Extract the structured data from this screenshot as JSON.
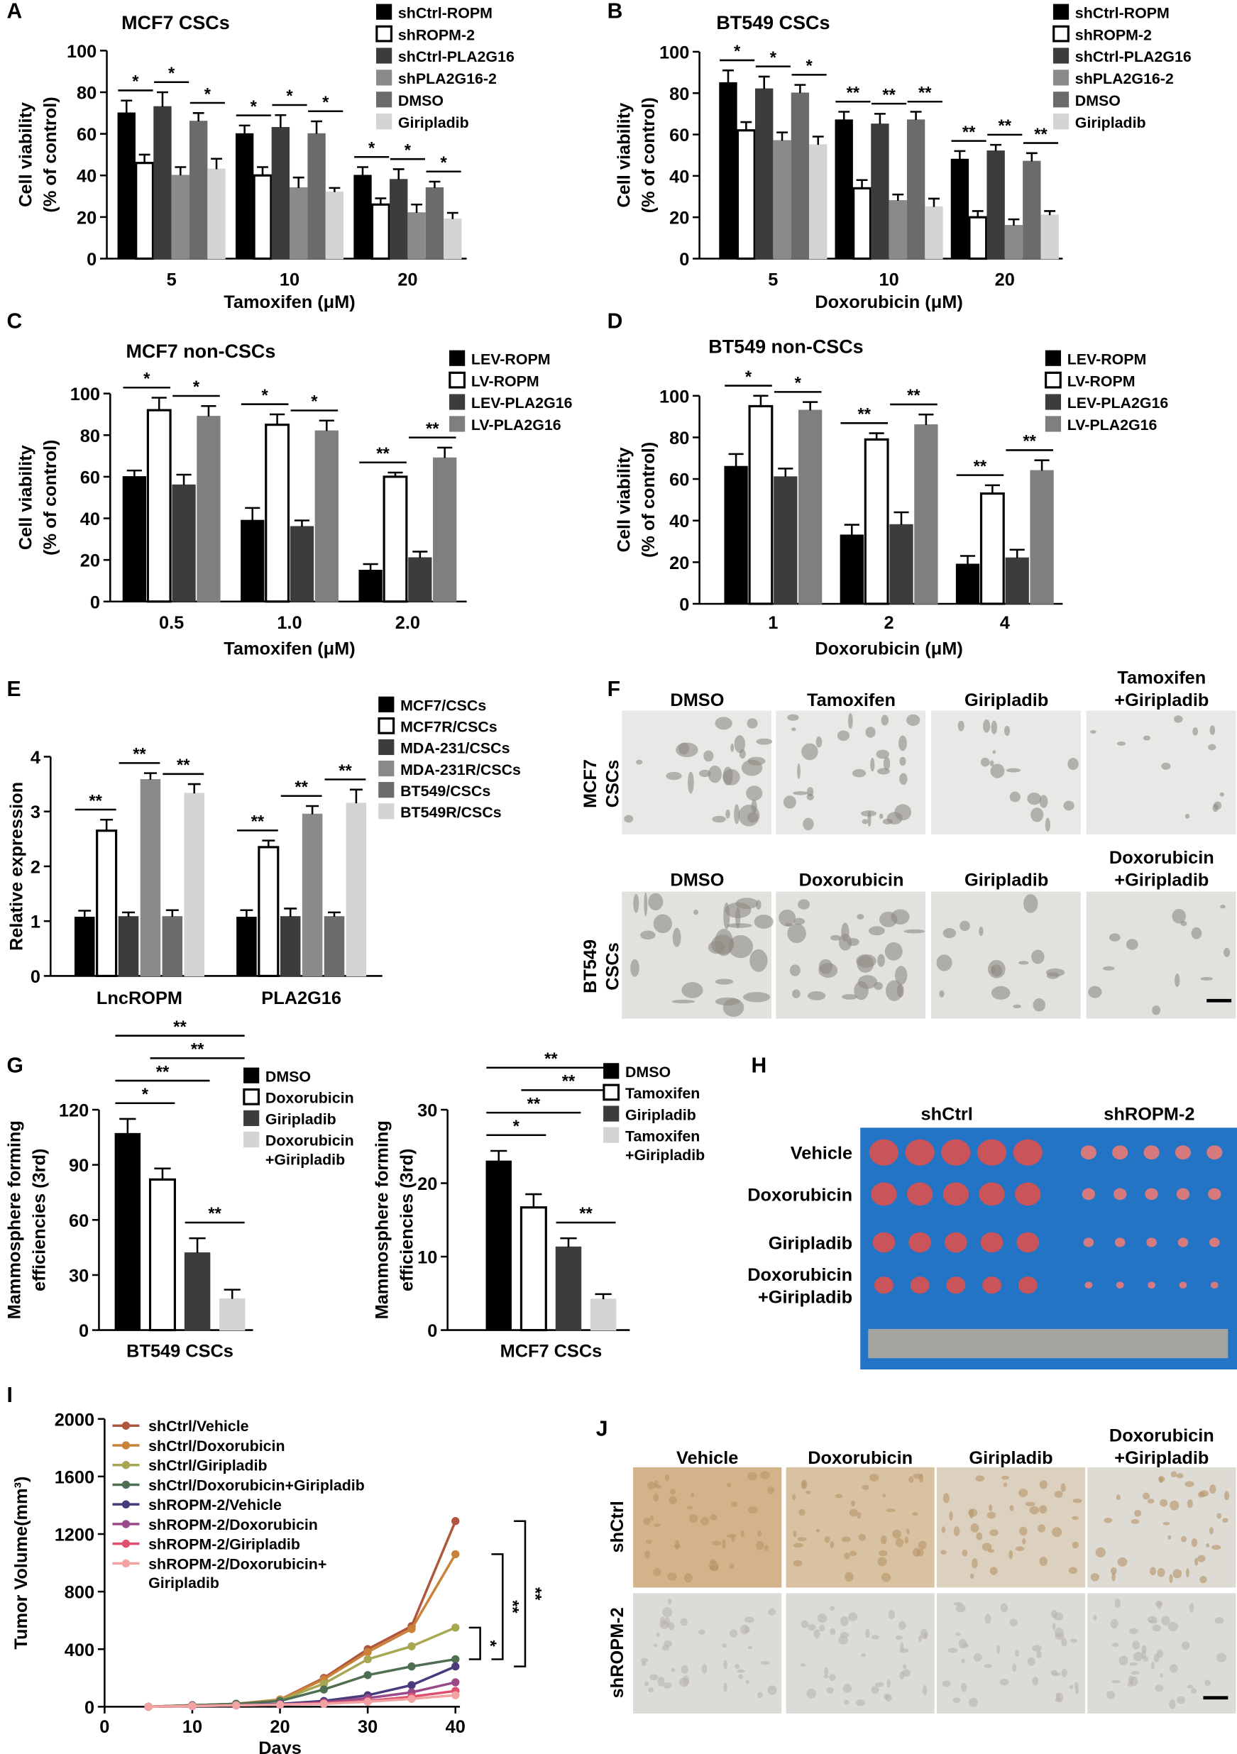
{
  "panel_labels": [
    "A",
    "B",
    "C",
    "D",
    "E",
    "F",
    "G",
    "H",
    "I",
    "J"
  ],
  "chart_data": [
    {
      "type": "bar",
      "title": "MCF7 CSCs",
      "x_label": "Tamoxifen (μM)",
      "y_label": [
        "Cell viability",
        "(% of control)"
      ],
      "categories": [
        "5",
        "10",
        "20"
      ],
      "ylim": [
        0,
        100
      ],
      "yticks": [
        0,
        20,
        40,
        60,
        80,
        100
      ],
      "series": [
        {
          "name": "shCtrl-ROPM",
          "color": "#000000",
          "values": [
            70,
            60,
            40
          ],
          "errors": [
            6,
            4,
            4
          ]
        },
        {
          "name": "shROPM-2",
          "color": "#ffffff",
          "values": [
            46,
            40,
            26
          ],
          "errors": [
            4,
            4,
            3
          ]
        },
        {
          "name": "shCtrl-PLA2G16",
          "color": "#3c3c3c",
          "values": [
            73,
            63,
            38
          ],
          "errors": [
            7,
            6,
            5
          ]
        },
        {
          "name": "shPLA2G16-2",
          "color": "#8a8a8a",
          "values": [
            40,
            34,
            22
          ],
          "errors": [
            4,
            5,
            4
          ]
        },
        {
          "name": "DMSO",
          "color": "#6b6b6b",
          "values": [
            66,
            60,
            34
          ],
          "errors": [
            4,
            6,
            3
          ]
        },
        {
          "name": "Giripladib",
          "color": "#d4d4d4",
          "values": [
            43,
            32,
            19
          ],
          "errors": [
            5,
            2,
            3
          ]
        }
      ],
      "significance": [
        [
          "*",
          "*",
          "*"
        ],
        [
          "*",
          "*",
          "*"
        ],
        [
          "*",
          "*",
          "*"
        ]
      ]
    },
    {
      "type": "bar",
      "title": "BT549 CSCs",
      "x_label": "Doxorubicin (μM)",
      "y_label": [
        "Cell viability",
        "(% of control)"
      ],
      "categories": [
        "5",
        "10",
        "20"
      ],
      "ylim": [
        0,
        100
      ],
      "yticks": [
        0,
        20,
        40,
        60,
        80,
        100
      ],
      "series": [
        {
          "name": "shCtrl-ROPM",
          "color": "#000000",
          "values": [
            85,
            67,
            48
          ],
          "errors": [
            6,
            4,
            4
          ]
        },
        {
          "name": "shROPM-2",
          "color": "#ffffff",
          "values": [
            62,
            34,
            20
          ],
          "errors": [
            4,
            4,
            3
          ]
        },
        {
          "name": "shCtrl-PLA2G16",
          "color": "#3c3c3c",
          "values": [
            82,
            65,
            52
          ],
          "errors": [
            6,
            5,
            3
          ]
        },
        {
          "name": "shPLA2G16-2",
          "color": "#8a8a8a",
          "values": [
            57,
            28,
            16
          ],
          "errors": [
            4,
            3,
            3
          ]
        },
        {
          "name": "DMSO",
          "color": "#6b6b6b",
          "values": [
            80,
            67,
            47
          ],
          "errors": [
            4,
            4,
            4
          ]
        },
        {
          "name": "Giripladib",
          "color": "#d4d4d4",
          "values": [
            55,
            25,
            21
          ],
          "errors": [
            4,
            4,
            2
          ]
        }
      ],
      "significance": [
        [
          "*",
          "*",
          "*"
        ],
        [
          "**",
          "**",
          "**"
        ],
        [
          "**",
          "**",
          "**"
        ]
      ]
    },
    {
      "type": "bar",
      "title": "MCF7 non-CSCs",
      "x_label": "Tamoxifen (μM)",
      "y_label": [
        "Cell viability",
        "(% of control)"
      ],
      "categories": [
        "0.5",
        "1.0",
        "2.0"
      ],
      "ylim": [
        0,
        100
      ],
      "yticks": [
        0,
        20,
        40,
        60,
        80,
        100
      ],
      "series": [
        {
          "name": "LEV-ROPM",
          "color": "#000000",
          "values": [
            60,
            39,
            15
          ],
          "errors": [
            3,
            6,
            3
          ]
        },
        {
          "name": "LV-ROPM",
          "color": "#ffffff",
          "values": [
            92,
            85,
            60
          ],
          "errors": [
            6,
            5,
            2
          ]
        },
        {
          "name": "LEV-PLA2G16",
          "color": "#3c3c3c",
          "values": [
            56,
            36,
            21
          ],
          "errors": [
            5,
            3,
            3
          ]
        },
        {
          "name": "LV-PLA2G16",
          "color": "#7f7f7f",
          "values": [
            89,
            82,
            69
          ],
          "errors": [
            5,
            5,
            5
          ]
        }
      ],
      "significance": [
        [
          "*",
          "*"
        ],
        [
          "*",
          "*"
        ],
        [
          "**",
          "**"
        ]
      ]
    },
    {
      "type": "bar",
      "title": "BT549 non-CSCs",
      "x_label": "Doxorubicin (μM)",
      "y_label": [
        "Cell viability",
        "(% of control)"
      ],
      "categories": [
        "1",
        "2",
        "4"
      ],
      "ylim": [
        0,
        100
      ],
      "yticks": [
        0,
        20,
        40,
        60,
        80,
        100
      ],
      "series": [
        {
          "name": "LEV-ROPM",
          "color": "#000000",
          "values": [
            66,
            33,
            19
          ],
          "errors": [
            6,
            5,
            4
          ]
        },
        {
          "name": "LV-ROPM",
          "color": "#ffffff",
          "values": [
            95,
            79,
            53
          ],
          "errors": [
            5,
            3,
            4
          ]
        },
        {
          "name": "LEV-PLA2G16",
          "color": "#3c3c3c",
          "values": [
            61,
            38,
            22
          ],
          "errors": [
            4,
            6,
            4
          ]
        },
        {
          "name": "LV-PLA2G16",
          "color": "#7f7f7f",
          "values": [
            93,
            86,
            64
          ],
          "errors": [
            4,
            5,
            5
          ]
        }
      ],
      "significance": [
        [
          "*",
          "*"
        ],
        [
          "**",
          "**"
        ],
        [
          "**",
          "**"
        ]
      ]
    },
    {
      "type": "bar",
      "y_label": [
        "Relative expression"
      ],
      "categories": [
        "LncROPM",
        "PLA2G16"
      ],
      "ylim": [
        0,
        4
      ],
      "yticks": [
        0,
        1,
        2,
        3,
        4
      ],
      "series": [
        {
          "name": "MCF7/CSCs",
          "color": "#000000",
          "values": [
            1.07,
            1.07
          ],
          "errors": [
            0.12,
            0.13
          ]
        },
        {
          "name": "MCF7R/CSCs",
          "color": "#ffffff",
          "values": [
            2.65,
            2.35
          ],
          "errors": [
            0.2,
            0.12
          ]
        },
        {
          "name": "MDA-231/CSCs",
          "color": "#3c3c3c",
          "values": [
            1.08,
            1.08
          ],
          "errors": [
            0.08,
            0.15
          ]
        },
        {
          "name": "MDA-231R/CSCs",
          "color": "#8a8a8a",
          "values": [
            3.58,
            2.95
          ],
          "errors": [
            0.12,
            0.15
          ]
        },
        {
          "name": "BT549/CSCs",
          "color": "#6b6b6b",
          "values": [
            1.08,
            1.08
          ],
          "errors": [
            0.12,
            0.08
          ]
        },
        {
          "name": "BT549R/CSCs",
          "color": "#d4d4d4",
          "values": [
            3.33,
            3.15
          ],
          "errors": [
            0.17,
            0.25
          ]
        }
      ],
      "significance": [
        [
          "**",
          "**",
          "**"
        ],
        [
          "**",
          "**",
          "**"
        ]
      ]
    },
    {
      "type": "bar",
      "x_label": "BT549 CSCs",
      "y_label": [
        "Mammosphere forming",
        "efficiencies (3rd)"
      ],
      "categories": [
        null
      ],
      "ylim": [
        0,
        120
      ],
      "yticks": [
        0,
        30,
        60,
        90,
        120
      ],
      "series": [
        {
          "name": "DMSO",
          "color": "#000000",
          "values": [
            107
          ],
          "errors": [
            8
          ]
        },
        {
          "name": "Doxorubicin",
          "color": "#ffffff",
          "values": [
            82
          ],
          "errors": [
            6
          ]
        },
        {
          "name": "Giripladib",
          "color": "#3c3c3c",
          "values": [
            42
          ],
          "errors": [
            8
          ]
        },
        {
          "name": "Doxorubicin\n+Giripladib",
          "color": "#d4d4d4",
          "values": [
            17
          ],
          "errors": [
            5
          ]
        }
      ],
      "comparisons": [
        {
          "series": [
            0,
            1
          ],
          "label": "*"
        },
        {
          "series": [
            0,
            2
          ],
          "label": "**"
        },
        {
          "series": [
            0,
            3
          ],
          "label": "**"
        },
        {
          "series": [
            1,
            3
          ],
          "label": "**"
        },
        {
          "series": [
            2,
            3
          ],
          "label": "**"
        }
      ]
    },
    {
      "type": "bar",
      "x_label": "MCF7 CSCs",
      "y_label": [
        "Mammosphere forming",
        "efficiencies (3rd)"
      ],
      "categories": [
        null
      ],
      "ylim": [
        0,
        30
      ],
      "yticks": [
        0,
        10,
        20,
        30
      ],
      "series": [
        {
          "name": "DMSO",
          "color": "#000000",
          "values": [
            23
          ],
          "errors": [
            1.4
          ]
        },
        {
          "name": "Tamoxifen",
          "color": "#ffffff",
          "values": [
            16.7
          ],
          "errors": [
            1.8
          ]
        },
        {
          "name": "Giripladib",
          "color": "#3c3c3c",
          "values": [
            11.3
          ],
          "errors": [
            1.2
          ]
        },
        {
          "name": "Tamoxifen\n+Giripladib",
          "color": "#d4d4d4",
          "values": [
            4.2
          ],
          "errors": [
            0.7
          ]
        }
      ],
      "comparisons": [
        {
          "series": [
            0,
            1
          ],
          "label": "*"
        },
        {
          "series": [
            0,
            2
          ],
          "label": "**"
        },
        {
          "series": [
            0,
            3
          ],
          "label": "**"
        },
        {
          "series": [
            1,
            3
          ],
          "label": "**"
        },
        {
          "series": [
            2,
            3
          ],
          "label": "**"
        }
      ]
    },
    {
      "type": "line",
      "x_label": "Days",
      "y_label": [
        "Tumor Volume(mm³)"
      ],
      "x": [
        5,
        10,
        15,
        20,
        25,
        30,
        35,
        40
      ],
      "xlim": [
        0,
        40
      ],
      "xticks": [
        0,
        10,
        20,
        30,
        40
      ],
      "ylim": [
        0,
        2000
      ],
      "yticks": [
        0,
        400,
        800,
        1200,
        1600,
        2000
      ],
      "series": [
        {
          "name": "shCtrl/Vehicle",
          "color": "#b0563e",
          "values": [
            0,
            10,
            20,
            50,
            200,
            400,
            560,
            1290
          ]
        },
        {
          "name": "shCtrl/Doxorubicin",
          "color": "#c98238",
          "values": [
            0,
            10,
            20,
            50,
            190,
            380,
            540,
            1060
          ]
        },
        {
          "name": "shCtrl/Giripladib",
          "color": "#a7a652",
          "values": [
            0,
            10,
            20,
            45,
            160,
            330,
            420,
            550
          ]
        },
        {
          "name": "shCtrl/Doxorubicin+Giripladib",
          "color": "#4f6f52",
          "values": [
            0,
            10,
            20,
            40,
            120,
            220,
            280,
            330
          ]
        },
        {
          "name": "shROPM-2/Vehicle",
          "color": "#4a3a7c",
          "values": [
            0,
            5,
            10,
            20,
            40,
            80,
            150,
            280
          ]
        },
        {
          "name": "shROPM-2/Doxorubicin",
          "color": "#9a4a88",
          "values": [
            0,
            5,
            10,
            15,
            30,
            60,
            100,
            170
          ]
        },
        {
          "name": "shROPM-2/Giripladib",
          "color": "#e0506e",
          "values": [
            0,
            5,
            10,
            15,
            25,
            40,
            70,
            110
          ]
        },
        {
          "name": "shROPM-2/Doxorubicin+\nGiripladib",
          "color": "#f2a2a2",
          "values": [
            0,
            5,
            10,
            15,
            20,
            35,
            55,
            80
          ]
        }
      ],
      "comparisons": [
        {
          "series": [
            2,
            3
          ],
          "label": "*"
        },
        {
          "series": [
            1,
            3
          ],
          "label": "**"
        },
        {
          "series": [
            0,
            4
          ],
          "label": "**"
        }
      ]
    }
  ],
  "photos": {
    "F": {
      "columns_top": [
        "DMSO",
        "Tamoxifen",
        "Giripladib",
        "Tamoxifen\n+Giripladib"
      ],
      "columns_bottom": [
        "DMSO",
        "Doxorubicin",
        "Giripladib",
        "Doxorubicin\n+Giripladib"
      ],
      "rows": [
        "MCF7\nCSCs",
        "BT549\nCSCs"
      ]
    },
    "H": {
      "columns": [
        "shCtrl",
        "shROPM-2"
      ],
      "rows": [
        "Vehicle",
        "Doxorubicin",
        "Giripladib",
        "Doxorubicin\n+Giripladib"
      ]
    },
    "J": {
      "columns": [
        "Vehicle",
        "Doxorubicin",
        "Giripladib",
        "Doxorubicin\n+Giripladib"
      ],
      "rows": [
        "shCtrl",
        "shROPM-2"
      ]
    }
  }
}
